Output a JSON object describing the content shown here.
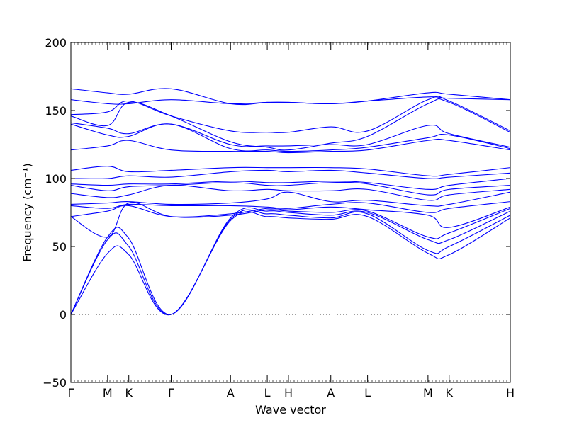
{
  "chart_data": {
    "type": "line",
    "title": "",
    "xlabel": "Wave vector",
    "ylabel": "Frequency (cm⁻¹)",
    "ylim": [
      -50,
      200
    ],
    "yticks": [
      "−50",
      "0",
      "50",
      "100",
      "150",
      "200"
    ],
    "ytick_values": [
      -50,
      0,
      50,
      100,
      150,
      200
    ],
    "high_symmetry_labels": [
      "Γ",
      "M",
      "K",
      "Γ",
      "A",
      "L",
      "H",
      "A",
      "L",
      "M",
      "K",
      "H"
    ],
    "high_symmetry_x": [
      0,
      0.0836,
      0.1318,
      0.2282,
      0.3633,
      0.4469,
      0.4951,
      0.5915,
      0.6752,
      0.8127,
      0.8609,
      1.0
    ],
    "zero_line": "dotted",
    "series_color": "#0000ff",
    "grid": false,
    "note_units": "x is normalized path length along Γ-M-K-Γ-A-L-H-A-L-M-K-H",
    "series": [
      {
        "x": [
          0,
          0.0836,
          0.1318,
          0.2282,
          0.3633,
          0.4469,
          0.4951,
          0.5915,
          0.6752,
          0.8127,
          0.8609,
          1.0
        ],
        "values": [
          0,
          45,
          44,
          0,
          69,
          72,
          71,
          70,
          72,
          45,
          44,
          71
        ]
      },
      {
        "x": [
          0,
          0.0836,
          0.1318,
          0.2282,
          0.3633,
          0.4469,
          0.4951,
          0.5915,
          0.6752,
          0.8127,
          0.8609,
          1.0
        ],
        "values": [
          0,
          55,
          50,
          0,
          70,
          74,
          73,
          71,
          74,
          47,
          50,
          73
        ]
      },
      {
        "x": [
          0,
          0.0836,
          0.1318,
          0.2282,
          0.3633,
          0.4469,
          0.4951,
          0.5915,
          0.6752,
          0.8127,
          0.8609,
          1.0
        ],
        "values": [
          0,
          57,
          56,
          0,
          71,
          76,
          75,
          73,
          75,
          55,
          55,
          76
        ]
      },
      {
        "x": [
          0,
          0.0836,
          0.1318,
          0.2282,
          0.3633,
          0.4469,
          0.4951,
          0.5915,
          0.6752,
          0.8127,
          0.8609,
          1.0
        ],
        "values": [
          72,
          57,
          82,
          72,
          73,
          77,
          76,
          75,
          76,
          57,
          60,
          78
        ]
      },
      {
        "x": [
          0,
          0.0836,
          0.1318,
          0.2282,
          0.3633,
          0.4469,
          0.4951,
          0.5915,
          0.6752,
          0.8127,
          0.8609,
          1.0
        ],
        "values": [
          72,
          76,
          80,
          72,
          74,
          78,
          77,
          79,
          77,
          73,
          64,
          79
        ]
      },
      {
        "x": [
          0,
          0.0836,
          0.1318,
          0.2282,
          0.3633,
          0.4469,
          0.4951,
          0.5915,
          0.6752,
          0.8127,
          0.8609,
          1.0
        ],
        "values": [
          80,
          78,
          81,
          80,
          80,
          79,
          78,
          81,
          82,
          75,
          78,
          83
        ]
      },
      {
        "x": [
          0,
          0.0836,
          0.1318,
          0.2282,
          0.3633,
          0.4469,
          0.4951,
          0.5915,
          0.6752,
          0.8127,
          0.8609,
          1.0
        ],
        "values": [
          81,
          82,
          83,
          81,
          82,
          85,
          90,
          83,
          84,
          80,
          81,
          90
        ]
      },
      {
        "x": [
          0,
          0.0836,
          0.1318,
          0.2282,
          0.3633,
          0.4469,
          0.4951,
          0.5915,
          0.6752,
          0.8127,
          0.8609,
          1.0
        ],
        "values": [
          89,
          86,
          88,
          95,
          91,
          92,
          91,
          91,
          92,
          84,
          88,
          92
        ]
      },
      {
        "x": [
          0,
          0.0836,
          0.1318,
          0.2282,
          0.3633,
          0.4469,
          0.4951,
          0.5915,
          0.6752,
          0.8127,
          0.8609,
          1.0
        ],
        "values": [
          95,
          91,
          94,
          95,
          97,
          95,
          95,
          97,
          96,
          88,
          92,
          95
        ]
      },
      {
        "x": [
          0,
          0.0836,
          0.1318,
          0.2282,
          0.3633,
          0.4469,
          0.4951,
          0.5915,
          0.6752,
          0.8127,
          0.8609,
          1.0
        ],
        "values": [
          96,
          95,
          96,
          96,
          98,
          97,
          97,
          98,
          97,
          92,
          95,
          100
        ]
      },
      {
        "x": [
          0,
          0.0836,
          0.1318,
          0.2282,
          0.3633,
          0.4469,
          0.4951,
          0.5915,
          0.6752,
          0.8127,
          0.8609,
          1.0
        ],
        "values": [
          100,
          100,
          102,
          101,
          105,
          106,
          105,
          106,
          104,
          100,
          101,
          104
        ]
      },
      {
        "x": [
          0,
          0.0836,
          0.1318,
          0.2282,
          0.3633,
          0.4469,
          0.4951,
          0.5915,
          0.6752,
          0.8127,
          0.8609,
          1.0
        ],
        "values": [
          106,
          109,
          105,
          106,
          108,
          108,
          108,
          108,
          107,
          102,
          103,
          108
        ]
      },
      {
        "x": [
          0,
          0.0836,
          0.1318,
          0.2282,
          0.3633,
          0.4469,
          0.4951,
          0.5915,
          0.6752,
          0.8127,
          0.8609,
          1.0
        ],
        "values": [
          121,
          124,
          128,
          121,
          120,
          120,
          119,
          120,
          121,
          128,
          128,
          121
        ]
      },
      {
        "x": [
          0,
          0.0836,
          0.1318,
          0.2282,
          0.3633,
          0.4469,
          0.4951,
          0.5915,
          0.6752,
          0.8127,
          0.8609,
          1.0
        ],
        "values": [
          140,
          132,
          131,
          140,
          122,
          121,
          120,
          121,
          123,
          130,
          132,
          122
        ]
      },
      {
        "x": [
          0,
          0.0836,
          0.1318,
          0.2282,
          0.3633,
          0.4469,
          0.4951,
          0.5915,
          0.6752,
          0.8127,
          0.8609,
          1.0
        ],
        "values": [
          141,
          137,
          133,
          140,
          125,
          124,
          124,
          125,
          125,
          139,
          133,
          123
        ]
      },
      {
        "x": [
          0,
          0.0836,
          0.1318,
          0.2282,
          0.3633,
          0.4469,
          0.4951,
          0.5915,
          0.6752,
          0.8127,
          0.8609,
          1.0
        ],
        "values": [
          146,
          139,
          156,
          146,
          127,
          123,
          121,
          126,
          131,
          155,
          156,
          134
        ]
      },
      {
        "x": [
          0,
          0.0836,
          0.1318,
          0.2282,
          0.3633,
          0.4469,
          0.4951,
          0.5915,
          0.6752,
          0.8127,
          0.8609,
          1.0
        ],
        "values": [
          147,
          149,
          157,
          146,
          135,
          134,
          134,
          138,
          135,
          158,
          157,
          135
        ]
      },
      {
        "x": [
          0,
          0.0836,
          0.1318,
          0.2282,
          0.3633,
          0.4469,
          0.4951,
          0.5915,
          0.6752,
          0.8127,
          0.8609,
          1.0
        ],
        "values": [
          158,
          155,
          155,
          158,
          155,
          156,
          156,
          155,
          157,
          160,
          159,
          158
        ]
      },
      {
        "x": [
          0,
          0.0836,
          0.1318,
          0.2282,
          0.3633,
          0.4469,
          0.4951,
          0.5915,
          0.6752,
          0.8127,
          0.8609,
          1.0
        ],
        "values": [
          166,
          163,
          162,
          166,
          155,
          156,
          156,
          155,
          157,
          163,
          162,
          158
        ]
      }
    ]
  }
}
